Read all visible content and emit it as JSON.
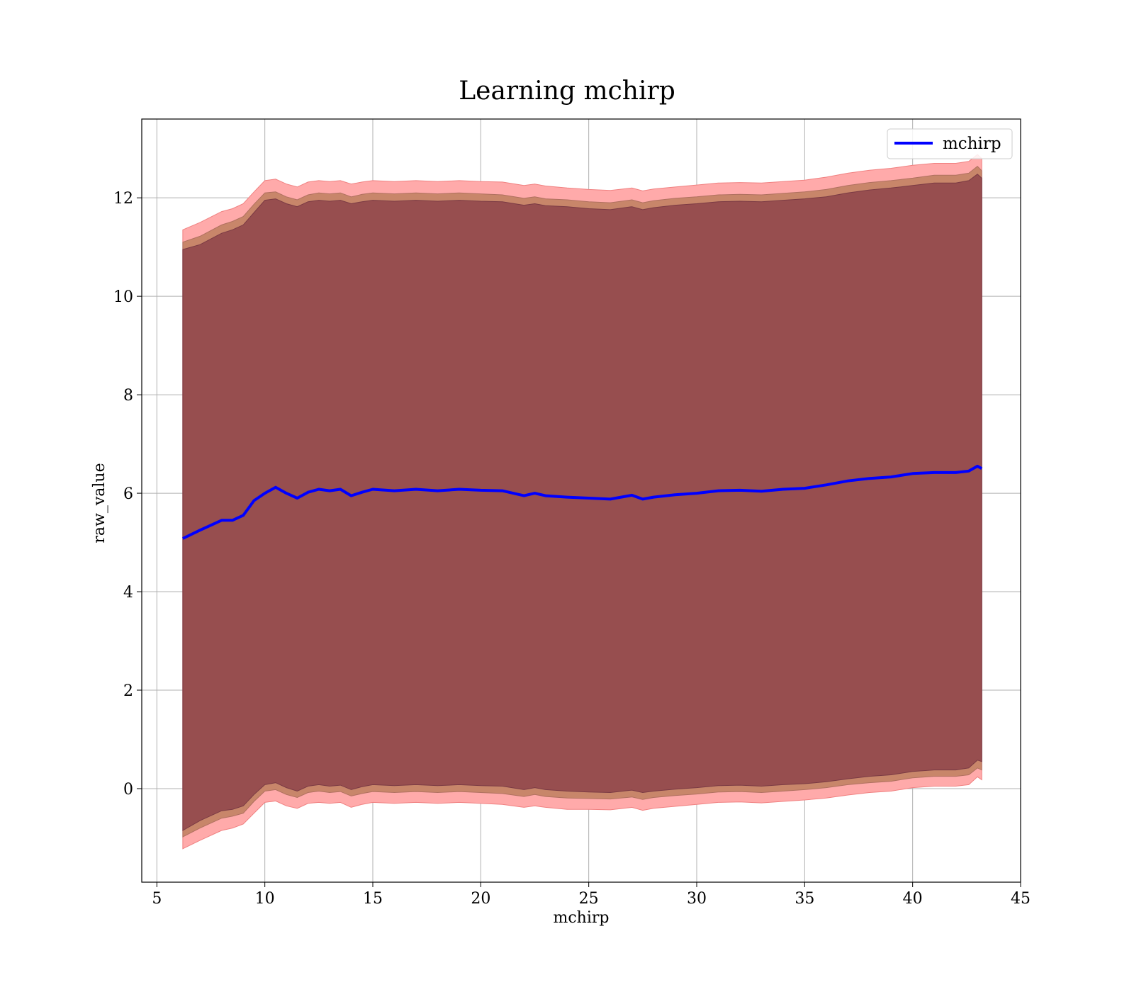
{
  "chart_data": {
    "type": "line",
    "title": "Learning mchirp",
    "xlabel": "mchirp",
    "ylabel": "raw_value",
    "xlim": [
      4.3,
      45.0
    ],
    "ylim": [
      -1.9,
      13.6
    ],
    "xticks": [
      5,
      10,
      15,
      20,
      25,
      30,
      35,
      40,
      45
    ],
    "yticks": [
      0,
      2,
      4,
      6,
      8,
      10,
      12
    ],
    "grid": true,
    "legend": {
      "position": "top-right",
      "entries": [
        "mchirp"
      ]
    },
    "colors": {
      "line": "#0000ff",
      "band_inner": "#8b4049",
      "band_middle": "#c8866a",
      "band_outer": "#ffaaaa"
    },
    "series": [
      {
        "name": "mchirp",
        "x": [
          6.2,
          7.0,
          8.0,
          8.5,
          9.0,
          9.5,
          10.0,
          10.5,
          11.0,
          11.5,
          12.0,
          12.5,
          13.0,
          13.5,
          14.0,
          14.5,
          15.0,
          16.0,
          17.0,
          18.0,
          19.0,
          20.0,
          21.0,
          22.0,
          22.5,
          23.0,
          24.0,
          25.0,
          26.0,
          27.0,
          27.5,
          28.0,
          29.0,
          30.0,
          31.0,
          32.0,
          33.0,
          34.0,
          35.0,
          36.0,
          37.0,
          38.0,
          39.0,
          40.0,
          41.0,
          42.0,
          42.6,
          43.0,
          43.2
        ],
        "y": [
          5.08,
          5.25,
          5.45,
          5.45,
          5.55,
          5.85,
          6.0,
          6.12,
          6.0,
          5.9,
          6.02,
          6.08,
          6.05,
          6.08,
          5.95,
          6.02,
          6.08,
          6.05,
          6.08,
          6.05,
          6.08,
          6.06,
          6.05,
          5.95,
          6.0,
          5.95,
          5.92,
          5.9,
          5.88,
          5.96,
          5.88,
          5.92,
          5.97,
          6.0,
          6.05,
          6.06,
          6.04,
          6.08,
          6.1,
          6.17,
          6.25,
          6.3,
          6.33,
          6.4,
          6.42,
          6.42,
          6.45,
          6.55,
          6.5
        ]
      }
    ],
    "bands": {
      "inner": {
        "lower": [
          -0.85,
          -0.65,
          -0.45,
          -0.42,
          -0.35,
          -0.12,
          0.08,
          0.12,
          0.02,
          -0.05,
          0.05,
          0.08,
          0.05,
          0.07,
          -0.02,
          0.04,
          0.08,
          0.06,
          0.08,
          0.06,
          0.08,
          0.06,
          0.05,
          -0.02,
          0.02,
          -0.02,
          -0.05,
          -0.07,
          -0.08,
          -0.03,
          -0.08,
          -0.05,
          -0.01,
          0.02,
          0.06,
          0.07,
          0.05,
          0.08,
          0.1,
          0.14,
          0.2,
          0.25,
          0.28,
          0.35,
          0.38,
          0.38,
          0.42,
          0.58,
          0.55
        ],
        "upper": [
          10.95,
          11.05,
          11.28,
          11.35,
          11.45,
          11.7,
          11.95,
          11.98,
          11.88,
          11.82,
          11.92,
          11.95,
          11.93,
          11.95,
          11.88,
          11.92,
          11.95,
          11.93,
          11.95,
          11.93,
          11.95,
          11.93,
          11.92,
          11.85,
          11.88,
          11.84,
          11.82,
          11.78,
          11.76,
          11.82,
          11.76,
          11.8,
          11.85,
          11.88,
          11.92,
          11.93,
          11.92,
          11.95,
          11.98,
          12.02,
          12.1,
          12.16,
          12.2,
          12.25,
          12.3,
          12.3,
          12.35,
          12.48,
          12.4
        ]
      },
      "middle": {
        "lower": [
          -0.98,
          -0.8,
          -0.6,
          -0.56,
          -0.5,
          -0.26,
          -0.05,
          -0.02,
          -0.12,
          -0.18,
          -0.08,
          -0.05,
          -0.08,
          -0.06,
          -0.15,
          -0.1,
          -0.06,
          -0.08,
          -0.06,
          -0.08,
          -0.06,
          -0.08,
          -0.1,
          -0.16,
          -0.12,
          -0.16,
          -0.19,
          -0.2,
          -0.21,
          -0.17,
          -0.22,
          -0.18,
          -0.14,
          -0.11,
          -0.07,
          -0.06,
          -0.08,
          -0.05,
          -0.02,
          0.02,
          0.08,
          0.12,
          0.15,
          0.22,
          0.25,
          0.25,
          0.28,
          0.42,
          0.38
        ],
        "upper": [
          11.1,
          11.22,
          11.45,
          11.52,
          11.62,
          11.87,
          12.1,
          12.12,
          12.02,
          11.96,
          12.06,
          12.1,
          12.08,
          12.1,
          12.02,
          12.07,
          12.1,
          12.08,
          12.1,
          12.08,
          12.1,
          12.08,
          12.06,
          11.99,
          12.02,
          11.98,
          11.96,
          11.92,
          11.9,
          11.96,
          11.9,
          11.94,
          11.99,
          12.02,
          12.06,
          12.07,
          12.06,
          12.09,
          12.12,
          12.17,
          12.25,
          12.31,
          12.35,
          12.4,
          12.46,
          12.46,
          12.5,
          12.64,
          12.55
        ]
      },
      "outer": {
        "lower": [
          -1.22,
          -1.05,
          -0.85,
          -0.8,
          -0.72,
          -0.5,
          -0.28,
          -0.25,
          -0.35,
          -0.4,
          -0.3,
          -0.28,
          -0.3,
          -0.28,
          -0.38,
          -0.32,
          -0.28,
          -0.3,
          -0.28,
          -0.3,
          -0.28,
          -0.3,
          -0.32,
          -0.38,
          -0.35,
          -0.38,
          -0.42,
          -0.42,
          -0.43,
          -0.38,
          -0.44,
          -0.4,
          -0.36,
          -0.32,
          -0.28,
          -0.27,
          -0.29,
          -0.26,
          -0.23,
          -0.19,
          -0.13,
          -0.08,
          -0.05,
          0.02,
          0.05,
          0.05,
          0.08,
          0.24,
          0.18
        ],
        "upper": [
          11.35,
          11.5,
          11.72,
          11.78,
          11.88,
          12.12,
          12.35,
          12.38,
          12.28,
          12.22,
          12.32,
          12.35,
          12.33,
          12.35,
          12.28,
          12.32,
          12.35,
          12.33,
          12.35,
          12.33,
          12.35,
          12.33,
          12.32,
          12.25,
          12.28,
          12.24,
          12.2,
          12.17,
          12.15,
          12.2,
          12.14,
          12.18,
          12.22,
          12.26,
          12.3,
          12.31,
          12.3,
          12.33,
          12.36,
          12.42,
          12.5,
          12.56,
          12.6,
          12.66,
          12.7,
          12.7,
          12.74,
          12.88,
          12.8
        ]
      }
    }
  }
}
